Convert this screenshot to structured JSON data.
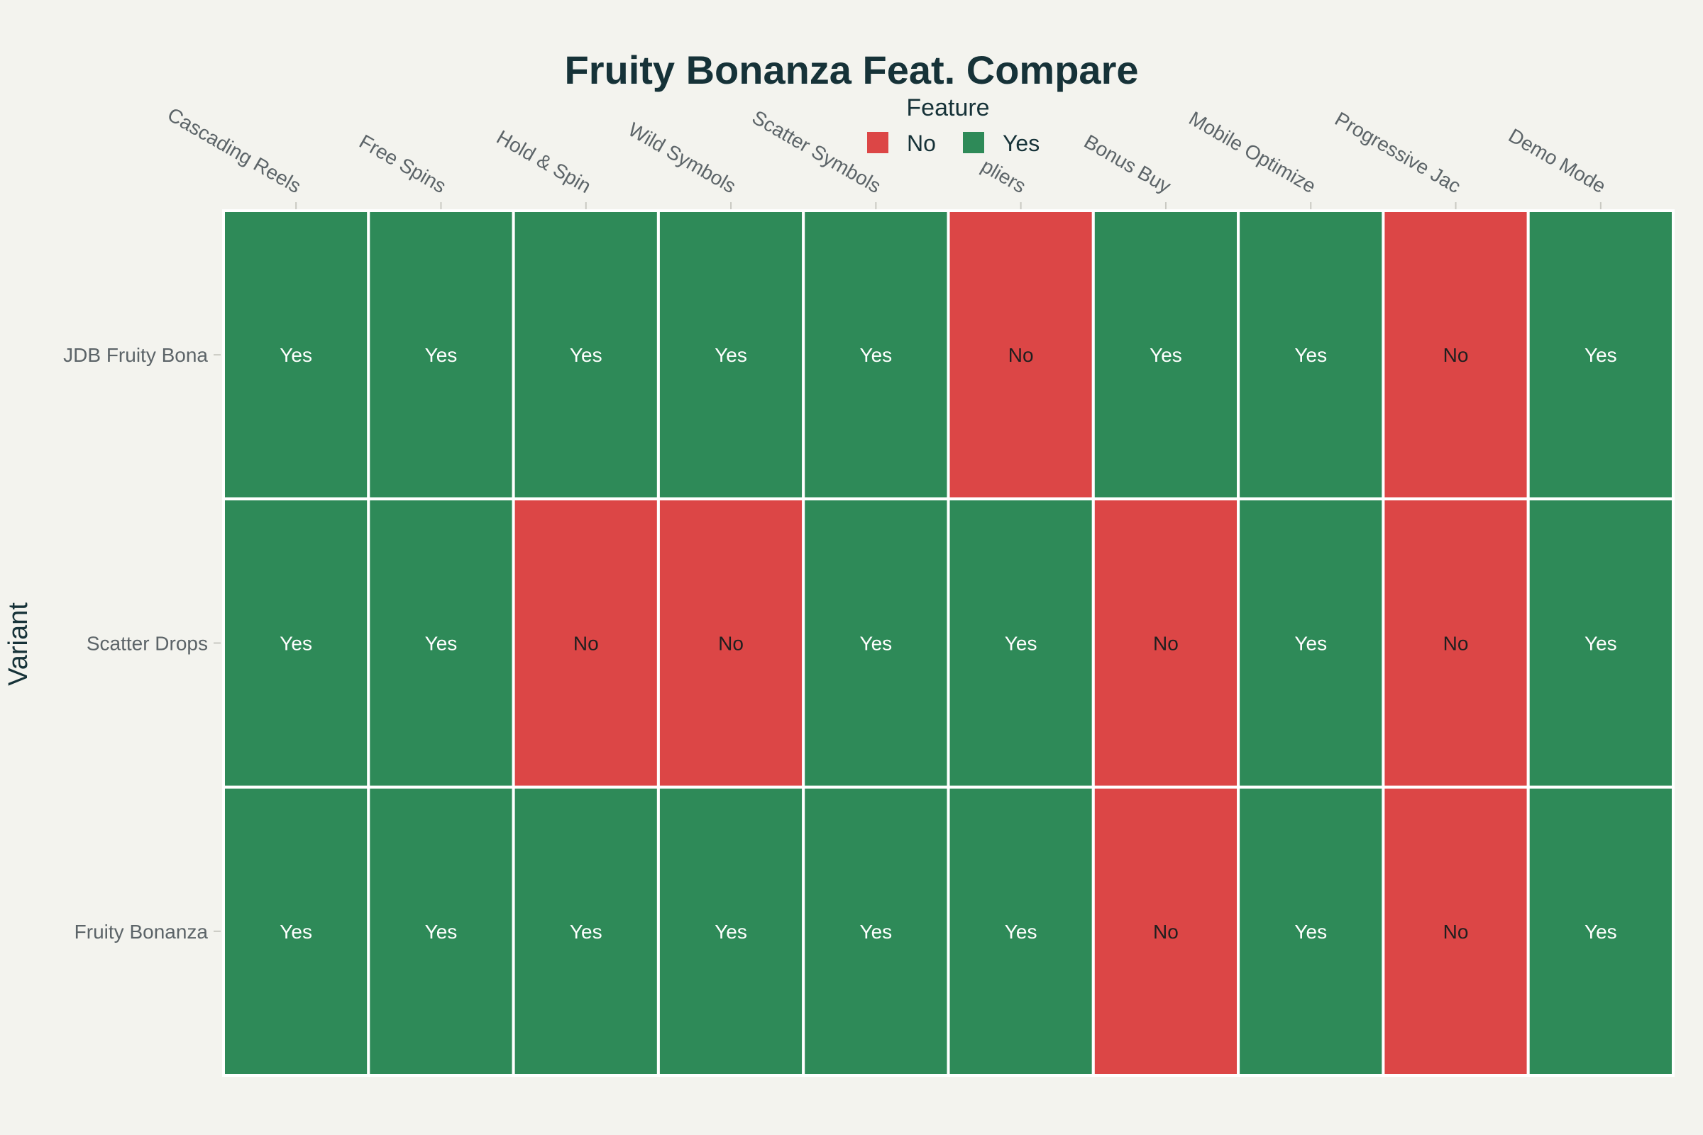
{
  "chart_data": {
    "type": "heatmap",
    "title": "Fruity Bonanza Feat. Compare",
    "xlabel": "",
    "ylabel": "Variant",
    "x_tick_labels": [
      "Cascading Reels",
      "Free Spins",
      "Hold & Spin",
      "Wild Symbols",
      "Scatter Symbols",
      "pliers",
      "Bonus Buy",
      "Mobile Optimize",
      "Progressive Jac",
      "Demo Mode"
    ],
    "y_tick_labels": [
      "JDB Fruity Bona",
      "Scatter Drops",
      "Fruity Bonanza"
    ],
    "values": [
      [
        "Yes",
        "Yes",
        "Yes",
        "Yes",
        "Yes",
        "No",
        "Yes",
        "Yes",
        "No",
        "Yes"
      ],
      [
        "Yes",
        "Yes",
        "No",
        "No",
        "Yes",
        "Yes",
        "No",
        "Yes",
        "No",
        "Yes"
      ],
      [
        "Yes",
        "Yes",
        "Yes",
        "Yes",
        "Yes",
        "Yes",
        "No",
        "Yes",
        "No",
        "Yes"
      ]
    ],
    "legend": {
      "title": "Feature",
      "placement": "top-center",
      "entries": [
        {
          "label": "No",
          "color": "#dc4646"
        },
        {
          "label": "Yes",
          "color": "#2e8a58"
        }
      ]
    },
    "colors": {
      "Yes": "#2e8a58",
      "No": "#dc4646",
      "yes_text": "#ffffff",
      "no_text": "#1f1f1f",
      "title": "#163238",
      "tick_label": "#5c6468",
      "axis_title": "#163238",
      "background": "#f3f3ee",
      "cell_border": "#ffffff"
    }
  }
}
